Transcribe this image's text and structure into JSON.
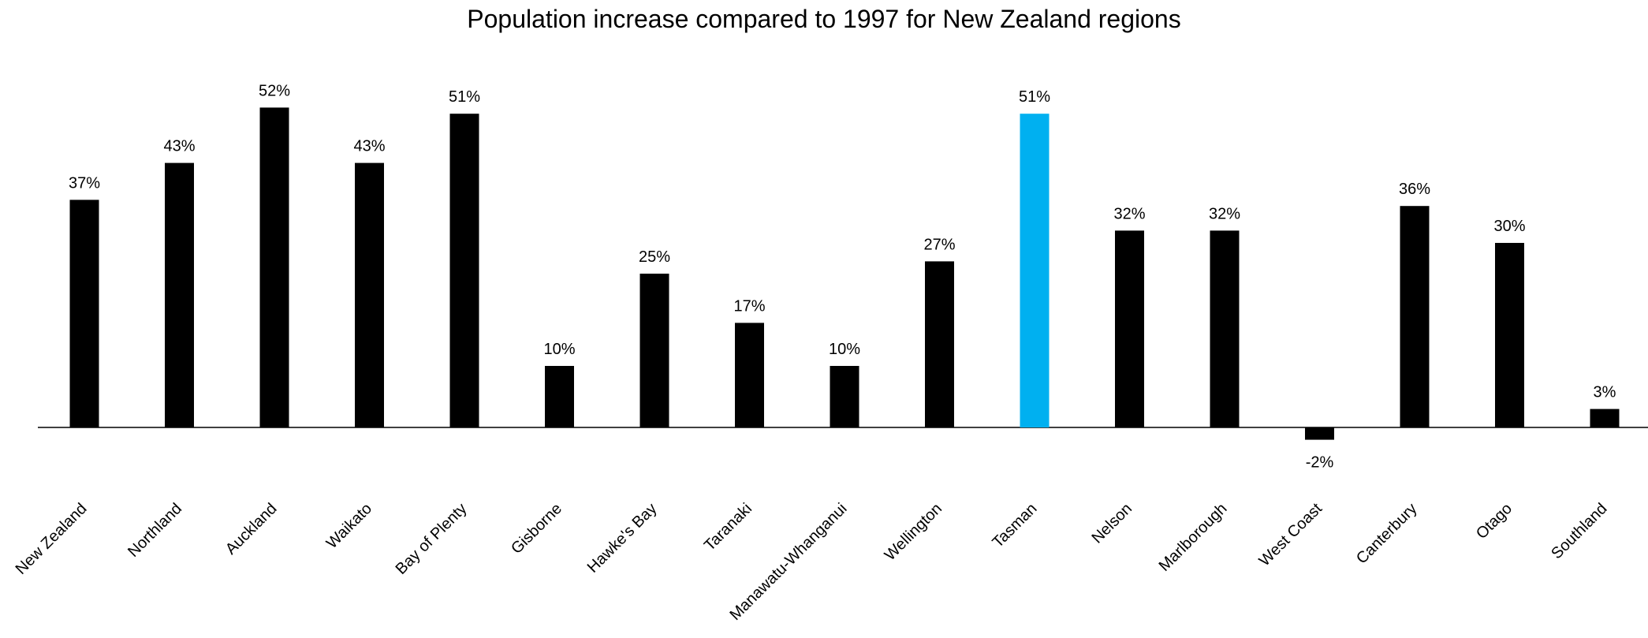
{
  "chart_data": {
    "type": "bar",
    "title": "Population increase compared to 1997 for New Zealand regions",
    "categories": [
      "New Zealand",
      "Northland",
      "Auckland",
      "Waikato",
      "Bay of Plenty",
      "Gisborne",
      "Hawke's Bay",
      "Taranaki",
      "Manawatu-Whanganui",
      "Wellington",
      "Tasman",
      "Nelson",
      "Marlborough",
      "West Coast",
      "Canterbury",
      "Otago",
      "Southland"
    ],
    "values": [
      37,
      43,
      52,
      43,
      51,
      10,
      25,
      17,
      10,
      27,
      51,
      32,
      32,
      -2,
      36,
      30,
      3
    ],
    "data_labels": [
      "37%",
      "43%",
      "52%",
      "43%",
      "51%",
      "10%",
      "25%",
      "17%",
      "10%",
      "27%",
      "51%",
      "32%",
      "32%",
      "-2%",
      "36%",
      "30%",
      "3%"
    ],
    "highlight_category": "Tasman",
    "colors": {
      "default": "#000000",
      "highlight": "#00B0F0"
    },
    "unit": "%",
    "ylim": [
      -2,
      52
    ],
    "grid": false,
    "legend": "none",
    "xlabel": "",
    "ylabel": ""
  }
}
